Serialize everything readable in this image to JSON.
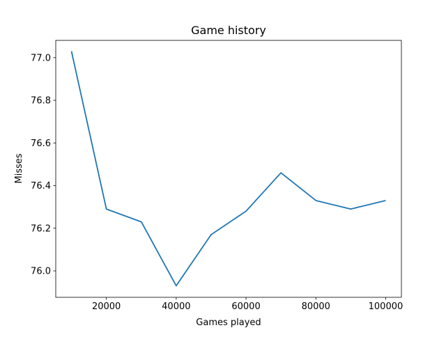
{
  "chart_data": {
    "type": "line",
    "title": "Game history",
    "xlabel": "Games played",
    "ylabel": "Misses",
    "xlim": [
      5500,
      104500
    ],
    "ylim": [
      75.876,
      77.081
    ],
    "xticks": [
      20000,
      40000,
      60000,
      80000,
      100000
    ],
    "yticks": [
      76.0,
      76.2,
      76.4,
      76.6,
      76.8,
      77.0
    ],
    "ytick_labels": [
      "76.0",
      "76.2",
      "76.4",
      "76.6",
      "76.8",
      "77.0"
    ],
    "grid": false,
    "series": [
      {
        "color": "#1f77b4",
        "x": [
          10000,
          20000,
          30000,
          40000,
          50000,
          60000,
          70000,
          80000,
          90000,
          100000
        ],
        "y": [
          77.03,
          76.29,
          76.23,
          75.93,
          76.17,
          76.28,
          76.46,
          76.33,
          76.29,
          76.33
        ]
      }
    ]
  }
}
